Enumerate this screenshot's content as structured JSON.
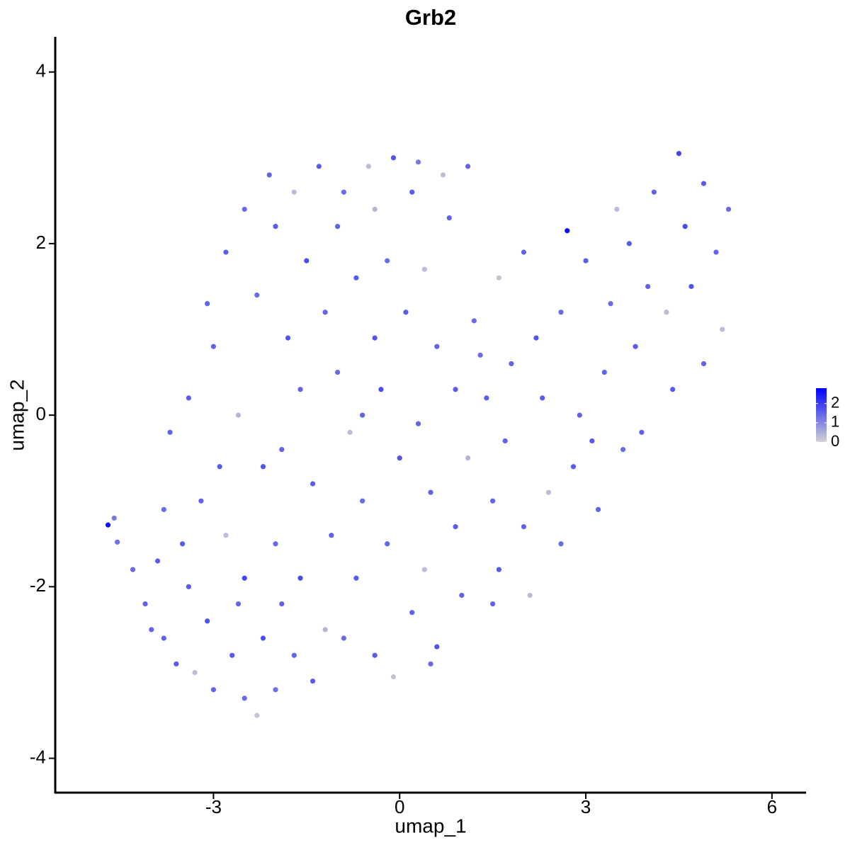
{
  "chart_data": {
    "type": "scatter",
    "title": "Grb2",
    "x_label": "umap_1",
    "y_label": "umap_2",
    "x": [
      -4.7,
      -4.6,
      -4.55,
      -4.3,
      -4.1,
      -3.9,
      -3.8,
      -3.6,
      -3.3,
      -3.1,
      -3.0,
      -2.7,
      -2.5,
      -2.3,
      -2.0,
      -2.2,
      -1.9,
      -1.4,
      -1.2,
      -3.5,
      -3.2,
      -2.8,
      -2.5,
      -2.0,
      -3.7,
      -3.4,
      -3.0,
      -2.6,
      -2.2,
      -3.1,
      -2.8,
      -2.5,
      -2.1,
      -1.7,
      -1.3,
      -0.9,
      -0.5,
      -0.1,
      0.3,
      0.7,
      1.1,
      -2.0,
      -1.5,
      -1.0,
      -0.4,
      0.2,
      -2.3,
      -1.8,
      -1.2,
      -0.7,
      -0.2,
      0.4,
      0.8,
      -1.6,
      -1.0,
      -0.4,
      0.1,
      0.6,
      1.2,
      -1.9,
      -1.4,
      -0.8,
      -0.3,
      0.3,
      0.9,
      -1.1,
      -0.6,
      0.0,
      0.5,
      1.1,
      -0.7,
      -0.2,
      0.4,
      0.9,
      1.5,
      -0.9,
      -0.4,
      0.2,
      0.6,
      1.0,
      -0.1,
      0.5,
      1.6,
      2.0,
      2.4,
      2.8,
      3.2,
      2.6,
      1.4,
      1.8,
      2.2,
      2.6,
      3.0,
      2.7,
      3.5,
      1.6,
      2.0,
      1.7,
      2.3,
      3.3,
      3.8,
      4.3,
      4.7,
      5.1,
      5.3,
      4.9,
      4.5,
      4.1,
      3.7,
      4.0,
      4.6,
      3.4,
      3.9,
      4.4,
      4.9,
      5.2,
      3.6,
      3.1,
      2.1,
      1.5,
      -3.4,
      -2.6,
      -1.6,
      -3.8,
      -4.0,
      -1.7,
      -2.9,
      -0.6,
      1.3,
      2.9
    ],
    "y": [
      -1.28,
      -1.2,
      -1.48,
      -1.8,
      -2.2,
      -1.7,
      -2.6,
      -2.9,
      -3.0,
      -2.4,
      -3.2,
      -2.8,
      -3.3,
      -3.5,
      -3.2,
      -2.6,
      -2.2,
      -3.1,
      -2.5,
      -1.5,
      -1.0,
      -1.4,
      -1.9,
      -1.5,
      -0.2,
      0.2,
      0.8,
      0.0,
      -0.6,
      1.3,
      1.9,
      2.4,
      2.8,
      2.6,
      2.9,
      2.6,
      2.9,
      3.0,
      2.95,
      2.8,
      2.9,
      2.2,
      1.8,
      2.2,
      2.4,
      2.6,
      1.4,
      0.9,
      1.2,
      1.6,
      1.8,
      1.7,
      2.3,
      0.3,
      0.5,
      0.9,
      1.2,
      0.8,
      1.1,
      -0.4,
      -0.8,
      -0.2,
      0.3,
      -0.1,
      0.3,
      -1.4,
      -1.0,
      -0.5,
      -0.9,
      -0.5,
      -1.9,
      -1.5,
      -1.8,
      -1.3,
      -1.0,
      -2.6,
      -2.8,
      -2.3,
      -2.7,
      -2.1,
      -3.05,
      -2.9,
      -1.8,
      -1.3,
      -0.9,
      -0.6,
      -1.1,
      -1.5,
      0.2,
      0.6,
      0.9,
      1.2,
      1.8,
      2.15,
      2.4,
      1.6,
      1.9,
      -0.3,
      0.2,
      0.5,
      0.8,
      1.2,
      1.5,
      1.9,
      2.4,
      2.7,
      3.05,
      2.6,
      2.0,
      1.5,
      2.2,
      1.3,
      -0.2,
      0.3,
      0.6,
      1.0,
      -0.4,
      -0.3,
      -2.1,
      -2.2,
      -2.0,
      -2.2,
      -1.9,
      -1.1,
      -2.5,
      -2.8,
      -0.6,
      0.0,
      0.7,
      0.0
    ],
    "expression": [
      2.6,
      1.2,
      1.3,
      1.4,
      1.5,
      1.6,
      1.5,
      1.6,
      0.3,
      1.7,
      1.5,
      1.6,
      1.4,
      0.2,
      1.3,
      1.8,
      1.5,
      1.6,
      0.4,
      1.6,
      1.5,
      0.3,
      1.9,
      1.4,
      1.5,
      1.6,
      1.5,
      0.4,
      1.7,
      1.5,
      1.6,
      1.4,
      1.5,
      0.3,
      1.6,
      1.4,
      0.3,
      1.7,
      1.2,
      0.3,
      1.5,
      1.6,
      1.8,
      1.5,
      0.4,
      1.6,
      1.4,
      1.7,
      1.5,
      1.6,
      1.4,
      0.3,
      1.5,
      1.5,
      1.4,
      1.7,
      1.6,
      1.5,
      1.4,
      1.5,
      1.6,
      0.3,
      1.8,
      1.5,
      1.6,
      1.5,
      1.4,
      1.7,
      1.5,
      0.4,
      1.6,
      1.5,
      0.3,
      1.6,
      1.5,
      1.4,
      1.6,
      1.5,
      1.7,
      1.5,
      0.2,
      1.4,
      1.6,
      1.5,
      0.3,
      1.6,
      1.5,
      1.4,
      1.6,
      1.5,
      1.7,
      1.4,
      1.6,
      2.6,
      0.3,
      0.2,
      1.5,
      1.5,
      1.6,
      1.5,
      1.6,
      0.3,
      1.7,
      1.5,
      1.4,
      1.6,
      1.9,
      1.5,
      1.6,
      1.5,
      1.8,
      1.4,
      1.5,
      1.6,
      1.5,
      0.3,
      1.4,
      1.6,
      0.3,
      1.5,
      1.6,
      1.5,
      1.8,
      1.4,
      1.5,
      1.5,
      1.6,
      1.5,
      1.4,
      1.5
    ],
    "low_color": "#d3d3d3",
    "high_color": "#0000ff",
    "xlim": [
      -5.55,
      6.55
    ],
    "xticks": [
      -3,
      0,
      3,
      6
    ],
    "ylim": [
      -4.4,
      4.41
    ],
    "yticks": [
      -4,
      -2,
      0,
      2,
      4
    ],
    "colorlim": [
      0,
      2.8
    ],
    "colorticks": [
      0,
      1,
      2
    ]
  }
}
